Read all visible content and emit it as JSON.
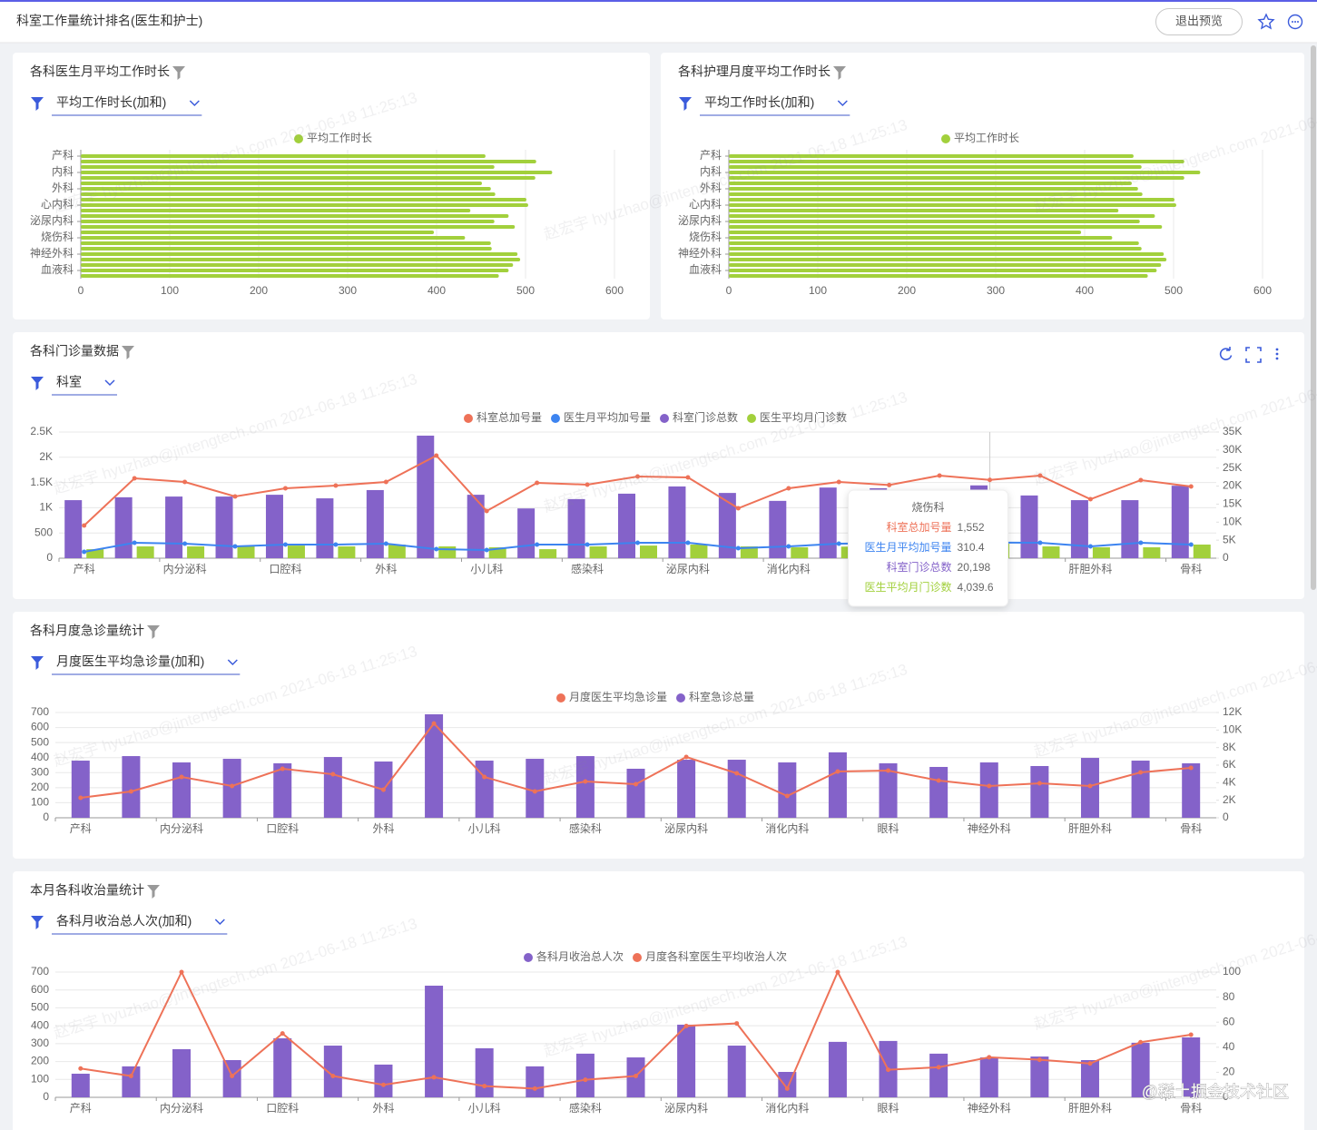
{
  "header": {
    "title": "科室工作量统计排名(医生和护士)",
    "button": "退出预览"
  },
  "watermark": "赵宏宇 hyuzhao@jintengtech.com 2021-06-18 11:25:13",
  "site_mark": "@稀土掘金技术社区",
  "chart_data": [
    {
      "type": "bar",
      "horizontal": true,
      "title": "各科医生月平均工作时长",
      "filter": "平均工作时长(加和)",
      "categories": [
        "产科",
        null,
        null,
        "内科",
        null,
        null,
        "外科",
        null,
        null,
        "心内科",
        null,
        null,
        "泌尿内科",
        null,
        null,
        "烧伤科",
        null,
        null,
        "神经外科",
        null,
        null,
        "血液科",
        null
      ],
      "series": [
        {
          "name": "平均工作时长",
          "color": "#a2d03c",
          "values": [
            455,
            512,
            465,
            530,
            511,
            451,
            461,
            466,
            501,
            503,
            438,
            481,
            465,
            488,
            397,
            432,
            461,
            462,
            491,
            494,
            486,
            481,
            470
          ]
        }
      ],
      "xlim": [
        0,
        600
      ],
      "xticks": [
        0,
        100,
        200,
        300,
        400,
        500,
        600
      ],
      "grid": true,
      "legend": "top"
    },
    {
      "type": "bar",
      "horizontal": true,
      "title": "各科护理月度平均工作时长",
      "filter": "平均工作时长(加和)",
      "categories": [
        "产科",
        null,
        null,
        "内科",
        null,
        null,
        "外科",
        null,
        null,
        "心内科",
        null,
        null,
        "泌尿内科",
        null,
        null,
        "烧伤科",
        null,
        null,
        "神经外科",
        null,
        null,
        "血液科",
        null
      ],
      "series": [
        {
          "name": "平均工作时长",
          "color": "#a2d03c",
          "values": [
            455,
            512,
            464,
            530,
            512,
            453,
            460,
            465,
            501,
            503,
            438,
            479,
            462,
            487,
            396,
            431,
            461,
            464,
            489,
            492,
            486,
            481,
            471
          ]
        }
      ],
      "xlim": [
        0,
        600
      ],
      "xticks": [
        0,
        100,
        200,
        300,
        400,
        500,
        600
      ],
      "grid": true,
      "legend": "top"
    },
    {
      "type": "combo",
      "title": "各科门诊量数据",
      "filter": "科室",
      "categories": [
        "产科",
        null,
        "内分泌科",
        null,
        "口腔科",
        null,
        "外科",
        null,
        "小儿科",
        null,
        "感染科",
        null,
        "泌尿内科",
        null,
        "消化内科",
        null,
        null,
        null,
        "烧伤科",
        null,
        "肝胆外科",
        null,
        "骨科"
      ],
      "series": [
        {
          "name": "科室总加号量",
          "type": "line",
          "color": "#ee7258",
          "values": [
            648,
            1583,
            1511,
            1223,
            1385,
            1439,
            1511,
            2033,
            935,
            1493,
            1457,
            1619,
            1601,
            989,
            1385,
            1511,
            1450,
            1637,
            1552,
            1637,
            1169,
            1547,
            1421
          ],
          "value_labels": [
            null,
            null,
            null,
            null,
            null,
            null,
            null,
            null,
            null,
            null,
            null,
            null,
            null,
            null,
            null,
            null,
            null,
            null,
            "1,552",
            null,
            null,
            null,
            null
          ]
        },
        {
          "name": "医生月平均加号量",
          "type": "line",
          "color": "#3d84f0",
          "values": [
            126,
            306,
            288,
            234,
            270,
            270,
            288,
            180,
            162,
            270,
            270,
            306,
            306,
            198,
            234,
            288,
            300,
            290,
            310.4,
            306,
            234,
            306,
            270
          ],
          "value_labels": [
            null,
            null,
            null,
            null,
            null,
            null,
            null,
            null,
            null,
            null,
            null,
            null,
            null,
            null,
            null,
            null,
            null,
            null,
            "310.4",
            null,
            null,
            null,
            null
          ]
        },
        {
          "name": "科室门诊总数",
          "type": "bar",
          "axis": "y2",
          "color": "#8462c9",
          "values": [
            16100,
            16900,
            17100,
            17100,
            17600,
            16600,
            18900,
            34000,
            17600,
            13800,
            16400,
            17900,
            19900,
            18100,
            15900,
            19600,
            19400,
            18000,
            20198,
            17400,
            16100,
            16100,
            20100
          ],
          "value_labels": [
            null,
            null,
            null,
            null,
            null,
            null,
            null,
            null,
            null,
            null,
            null,
            null,
            null,
            null,
            null,
            null,
            null,
            null,
            "20,198",
            null,
            null,
            null,
            null
          ]
        },
        {
          "name": "医生平均月门诊数",
          "type": "bar",
          "axis": "y2",
          "color": "#a2d03c",
          "values": [
            2500,
            3270,
            3270,
            3270,
            3500,
            3270,
            3780,
            3270,
            3020,
            2500,
            3270,
            3500,
            3780,
            3270,
            3020,
            3200,
            3400,
            3300,
            4039.6,
            3270,
            3020,
            3020,
            3780
          ],
          "value_labels": [
            null,
            null,
            null,
            null,
            null,
            null,
            null,
            null,
            null,
            null,
            null,
            null,
            null,
            null,
            null,
            null,
            null,
            null,
            "4,039.6",
            null,
            null,
            null,
            null
          ]
        }
      ],
      "ylim": [
        0,
        2500
      ],
      "yticks": [
        0,
        500,
        {
          "value": 1000,
          "label": "1K"
        },
        {
          "value": 1500,
          "label": "1.5K"
        },
        {
          "value": 2000,
          "label": "2K"
        },
        {
          "value": 2500,
          "label": "2.5K"
        }
      ],
      "y2lim": [
        0,
        35000
      ],
      "y2ticks": [
        0,
        {
          "value": 5000,
          "label": "5K"
        },
        {
          "value": 10000,
          "label": "10K"
        },
        {
          "value": 15000,
          "label": "15K"
        },
        {
          "value": 20000,
          "label": "20K"
        },
        {
          "value": 25000,
          "label": "25K"
        },
        {
          "value": 30000,
          "label": "30K"
        },
        {
          "value": 35000,
          "label": "35K"
        }
      ],
      "grid": true,
      "legend": "top"
    },
    {
      "type": "combo",
      "title": "各科月度急诊量统计",
      "filter": "月度医生平均急诊量(加和)",
      "categories": [
        "产科",
        null,
        "内分泌科",
        null,
        "口腔科",
        null,
        "外科",
        null,
        "小儿科",
        null,
        "感染科",
        null,
        "泌尿内科",
        null,
        "消化内科",
        null,
        "眼科",
        null,
        "神经外科",
        null,
        "肝胆外科",
        null,
        "骨科"
      ],
      "series": [
        {
          "name": "月度医生平均急诊量",
          "type": "line",
          "axis": "y2",
          "color": "#ee7258",
          "values": [
            2275,
            3000,
            4650,
            3620,
            5580,
            4960,
            3200,
            10750,
            4650,
            3000,
            4140,
            3830,
            6930,
            5070,
            2480,
            5270,
            5380,
            4240,
            3620,
            3930,
            3620,
            5170,
            5690
          ]
        },
        {
          "name": "科室急诊总量",
          "type": "bar",
          "color": "#8462c9",
          "values": [
            380,
            410,
            368,
            392,
            362,
            404,
            374,
            688,
            380,
            392,
            410,
            326,
            386,
            386,
            368,
            435,
            362,
            338,
            368,
            344,
            398,
            380,
            362
          ]
        }
      ],
      "ylim": [
        0,
        700
      ],
      "yticks": [
        0,
        100,
        200,
        300,
        400,
        500,
        600,
        700
      ],
      "y2lim": [
        0,
        12000
      ],
      "y2ticks": [
        0,
        {
          "value": 2000,
          "label": "2K"
        },
        {
          "value": 4000,
          "label": "4K"
        },
        {
          "value": 6000,
          "label": "6K"
        },
        {
          "value": 8000,
          "label": "8K"
        },
        {
          "value": 10000,
          "label": "10K"
        },
        {
          "value": 12000,
          "label": "12K"
        }
      ],
      "grid": true,
      "legend": "top"
    },
    {
      "type": "combo",
      "title": "本月各科收治量统计",
      "filter": "各科月收治总人次(加和)",
      "categories": [
        "产科",
        null,
        "内分泌科",
        null,
        "口腔科",
        null,
        "外科",
        null,
        "小儿科",
        null,
        "感染科",
        null,
        "泌尿内科",
        null,
        "消化内科",
        null,
        "眼科",
        null,
        "神经外科",
        null,
        "肝胆外科",
        null,
        "骨科"
      ],
      "series": [
        {
          "name": "各科月收治总人次",
          "type": "bar",
          "color": "#8462c9",
          "values": [
            132,
            173,
            269,
            208,
            330,
            289,
            183,
            624,
            274,
            173,
            244,
            223,
            406,
            289,
            142,
            310,
            315,
            244,
            223,
            228,
            208,
            305,
            335
          ]
        },
        {
          "name": "月度各科室医生平均收治人次",
          "type": "line",
          "axis": "y2",
          "color": "#ee7258",
          "values": [
            23,
            17,
            100,
            17,
            51,
            17,
            10,
            16,
            9,
            7,
            14,
            17,
            57,
            59,
            7,
            100,
            22,
            24,
            32,
            30,
            27,
            44,
            50
          ]
        }
      ],
      "ylim": [
        0,
        700
      ],
      "yticks": [
        0,
        100,
        200,
        300,
        400,
        500,
        600,
        700
      ],
      "y2lim": [
        0,
        100
      ],
      "y2ticks": [
        0,
        20,
        40,
        60,
        80,
        100
      ],
      "grid": true,
      "legend": "top"
    }
  ]
}
